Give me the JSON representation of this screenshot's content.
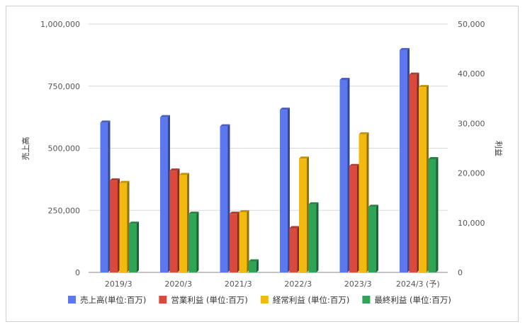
{
  "chart_data": {
    "type": "bar",
    "categories": [
      "2019/3",
      "2020/3",
      "2021/3",
      "2022/3",
      "2023/3",
      "2024/3 (予)"
    ],
    "series": [
      {
        "name": "売上高(単位:百万)",
        "axis": "left",
        "color": "#5b78f0",
        "values": [
          603000,
          625000,
          588000,
          655000,
          775000,
          895000
        ]
      },
      {
        "name": "営業利益 (単位:百万)",
        "axis": "right",
        "color": "#d94a3c",
        "values": [
          18500,
          20500,
          11800,
          8900,
          21400,
          39800
        ]
      },
      {
        "name": "経常利益 (単位:百万)",
        "axis": "right",
        "color": "#f2b90f",
        "values": [
          18000,
          19600,
          12100,
          22900,
          27800,
          37300
        ]
      },
      {
        "name": "最終利益 (単位:百万)",
        "axis": "right",
        "color": "#2fa356",
        "values": [
          9800,
          11800,
          2200,
          13700,
          13200,
          22800
        ]
      }
    ],
    "y_left": {
      "label": "売上高",
      "min": 0,
      "max": 1000000,
      "ticks": [
        "0",
        "250,000",
        "500,000",
        "750,000",
        "1,000,000"
      ]
    },
    "y_right": {
      "label": "利益",
      "min": 0,
      "max": 50000,
      "ticks": [
        "0",
        "10,000",
        "20,000",
        "30,000",
        "40,000",
        "50,000"
      ]
    },
    "grid": true,
    "legend_position": "bottom"
  }
}
